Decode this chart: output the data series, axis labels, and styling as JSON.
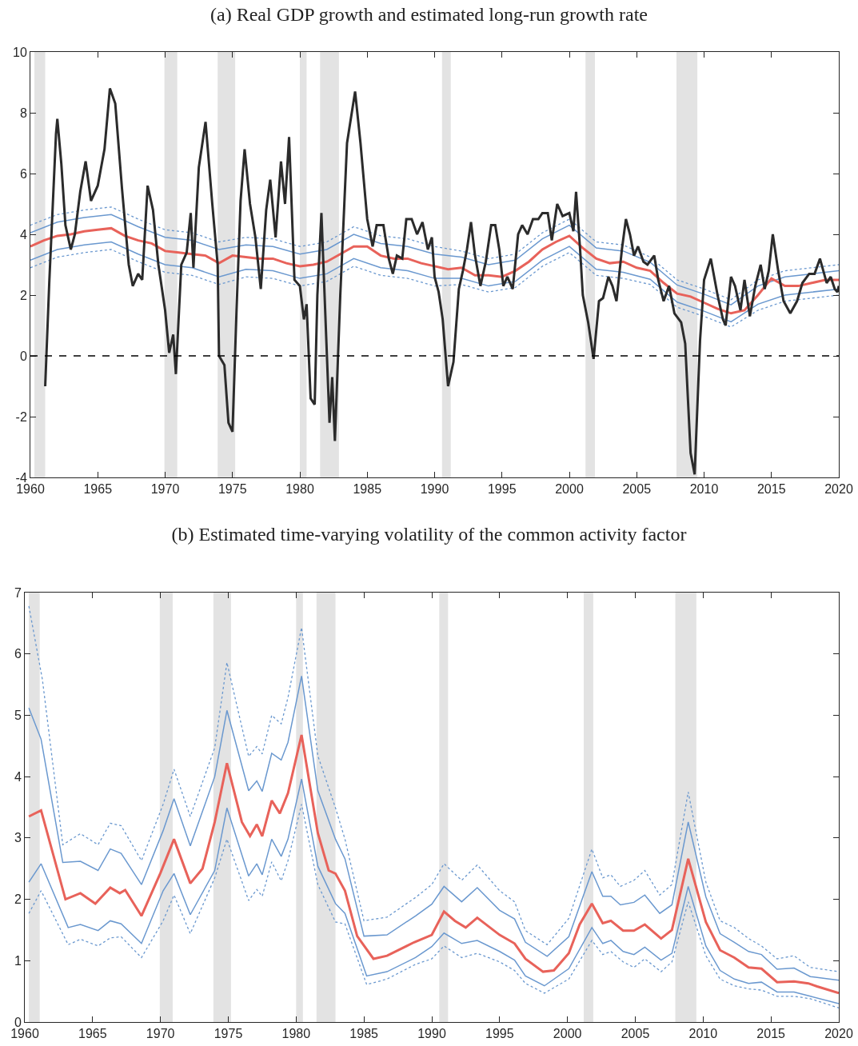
{
  "chart_data": [
    {
      "type": "line",
      "title": "(a) Real GDP growth and estimated long-run growth rate",
      "xlim": [
        1960,
        2020
      ],
      "xticks": [
        1960,
        1965,
        1970,
        1975,
        1980,
        1985,
        1990,
        1995,
        2000,
        2005,
        2010,
        2015,
        2020
      ],
      "ylim": [
        -4,
        10
      ],
      "yticks": [
        -4,
        -2,
        0,
        2,
        4,
        6,
        8,
        10
      ],
      "bands": [
        {
          "axis": "x",
          "from": 1960.3,
          "to": 1961.1,
          "color": "#e3e3e3"
        },
        {
          "axis": "x",
          "from": 1969.95,
          "to": 1970.9,
          "color": "#e3e3e3"
        },
        {
          "axis": "x",
          "from": 1973.9,
          "to": 1975.2,
          "color": "#e3e3e3"
        },
        {
          "axis": "x",
          "from": 1980.0,
          "to": 1980.5,
          "color": "#e3e3e3"
        },
        {
          "axis": "x",
          "from": 1981.5,
          "to": 1982.9,
          "color": "#e3e3e3"
        },
        {
          "axis": "x",
          "from": 1990.55,
          "to": 1991.2,
          "color": "#e3e3e3"
        },
        {
          "axis": "x",
          "from": 2001.2,
          "to": 2001.9,
          "color": "#e3e3e3"
        },
        {
          "axis": "x",
          "from": 2007.95,
          "to": 2009.5,
          "color": "#e3e3e3"
        }
      ],
      "ref_lines": [
        {
          "axis": "y",
          "value": 0,
          "color": "#000000",
          "line_style": "dashed"
        }
      ],
      "series": [
        {
          "color": "#2b2b2b",
          "x": [
            1961.1,
            1961.4,
            1961.9,
            1962.0,
            1962.3,
            1962.6,
            1963.0,
            1963.3,
            1963.7,
            1964.1,
            1964.5,
            1965.0,
            1965.5,
            1965.9,
            1966.3,
            1966.8,
            1967.3,
            1967.6,
            1968.0,
            1968.3,
            1968.7,
            1969.1,
            1969.5,
            1970.0,
            1970.3,
            1970.6,
            1970.8,
            1971.2,
            1971.6,
            1971.9,
            1972.1,
            1972.5,
            1973.0,
            1973.5,
            1973.9,
            1974.0,
            1974.4,
            1974.7,
            1975.0,
            1975.3,
            1975.6,
            1975.9,
            1976.3,
            1976.7,
            1977.1,
            1977.5,
            1977.8,
            1978.2,
            1978.6,
            1978.9,
            1979.2,
            1979.6,
            1980.0,
            1980.3,
            1980.5,
            1980.8,
            1981.1,
            1981.3,
            1981.6,
            1981.8,
            1982.2,
            1982.4,
            1982.6,
            1983.0,
            1983.5,
            1984.1,
            1984.5,
            1985.0,
            1985.4,
            1985.7,
            1986.2,
            1986.6,
            1986.9,
            1987.2,
            1987.6,
            1987.9,
            1988.3,
            1988.7,
            1989.1,
            1989.5,
            1989.8,
            1990.0,
            1990.3,
            1990.6,
            1991.0,
            1991.4,
            1991.8,
            1992.1,
            1992.4,
            1992.7,
            1993.0,
            1993.4,
            1993.8,
            1994.2,
            1994.5,
            1994.8,
            1995.1,
            1995.4,
            1995.8,
            1996.2,
            1996.5,
            1996.9,
            1997.3,
            1997.7,
            1998.0,
            1998.4,
            1998.7,
            1999.1,
            1999.5,
            2000.0,
            2000.3,
            2000.5,
            2000.8,
            2001.0,
            2001.4,
            2001.6,
            2001.8,
            2002.2,
            2002.5,
            2002.9,
            2003.2,
            2003.5,
            2003.9,
            2004.2,
            2004.5,
            2004.8,
            2005.1,
            2005.5,
            2005.8,
            2006.3,
            2006.6,
            2007.0,
            2007.4,
            2007.8,
            2008.3,
            2008.6,
            2009.0,
            2009.3,
            2009.7,
            2010.0,
            2010.5,
            2011.0,
            2011.4,
            2011.6,
            2012.0,
            2012.3,
            2012.7,
            2013.0,
            2013.4,
            2013.8,
            2014.2,
            2014.5,
            2014.8,
            2015.1,
            2015.5,
            2015.9,
            2016.4,
            2016.9,
            2017.3,
            2017.8,
            2018.2,
            2018.6,
            2019.1,
            2019.4,
            2019.7,
            2019.9,
            2020.0
          ],
          "values": [
            -1.0,
            2.4,
            7.3,
            7.8,
            6.3,
            4.3,
            3.5,
            4.0,
            5.4,
            6.4,
            5.1,
            5.6,
            6.8,
            8.8,
            8.3,
            5.5,
            3.0,
            2.3,
            2.7,
            2.5,
            5.6,
            4.8,
            3.0,
            1.5,
            0.1,
            0.7,
            -0.6,
            3.0,
            3.4,
            4.7,
            2.9,
            6.2,
            7.7,
            5.0,
            3.0,
            0.0,
            -0.3,
            -2.2,
            -2.5,
            1.5,
            5.1,
            6.8,
            5.0,
            3.9,
            2.2,
            4.8,
            5.8,
            3.9,
            6.4,
            5.0,
            7.2,
            2.5,
            2.3,
            1.2,
            1.7,
            -1.4,
            -1.6,
            2.0,
            4.7,
            2.4,
            -2.2,
            -0.7,
            -2.8,
            2.0,
            7.0,
            8.7,
            7.0,
            4.5,
            3.6,
            4.3,
            4.3,
            3.2,
            2.7,
            3.3,
            3.2,
            4.5,
            4.5,
            4.0,
            4.4,
            3.5,
            3.9,
            2.6,
            2.1,
            1.2,
            -1.0,
            -0.2,
            2.2,
            2.8,
            3.5,
            4.4,
            3.3,
            2.3,
            3.1,
            4.3,
            4.3,
            3.5,
            2.3,
            2.6,
            2.2,
            4.0,
            4.3,
            4.0,
            4.5,
            4.5,
            4.7,
            4.7,
            3.8,
            5.0,
            4.6,
            4.7,
            4.1,
            5.4,
            3.5,
            2.0,
            1.1,
            0.5,
            -0.1,
            1.8,
            1.9,
            2.6,
            2.3,
            1.8,
            3.5,
            4.5,
            4.0,
            3.3,
            3.6,
            3.1,
            3.0,
            3.3,
            2.5,
            1.8,
            2.3,
            1.4,
            1.1,
            0.4,
            -3.2,
            -3.9,
            0.5,
            2.5,
            3.2,
            2.0,
            1.2,
            1.0,
            2.6,
            2.3,
            1.5,
            2.5,
            1.3,
            2.3,
            3.0,
            2.2,
            2.8,
            4.0,
            2.8,
            1.8,
            1.4,
            1.8,
            2.4,
            2.7,
            2.7,
            3.2,
            2.4,
            2.6,
            2.2,
            2.1,
            2.3
          ]
        },
        {
          "color": "#e8625a",
          "x": [
            1960,
            1961,
            1962,
            1963,
            1964,
            1965,
            1966,
            1967,
            1968,
            1969,
            1970,
            1971,
            1972,
            1973,
            1974,
            1975,
            1976,
            1977,
            1978,
            1979,
            1980,
            1981,
            1982,
            1983,
            1984,
            1985,
            1986,
            1987,
            1988,
            1989,
            1990,
            1991,
            1992,
            1993,
            1994,
            1995,
            1996,
            1997,
            1998,
            1999,
            2000,
            2001,
            2002,
            2003,
            2004,
            2005,
            2006,
            2007,
            2008,
            2009,
            2010,
            2011,
            2012,
            2013,
            2014,
            2015,
            2016,
            2017,
            2018,
            2019,
            2020
          ],
          "values": [
            3.6,
            3.8,
            3.95,
            4.0,
            4.1,
            4.15,
            4.2,
            3.95,
            3.8,
            3.7,
            3.45,
            3.4,
            3.35,
            3.3,
            3.05,
            3.3,
            3.25,
            3.2,
            3.2,
            3.05,
            2.95,
            3.0,
            3.1,
            3.35,
            3.6,
            3.6,
            3.3,
            3.2,
            3.2,
            3.05,
            2.95,
            2.85,
            2.9,
            2.65,
            2.65,
            2.6,
            2.8,
            3.1,
            3.5,
            3.75,
            3.95,
            3.55,
            3.2,
            3.05,
            3.1,
            2.9,
            2.8,
            2.4,
            2.05,
            1.95,
            1.75,
            1.55,
            1.4,
            1.5,
            2.0,
            2.55,
            2.3,
            2.3,
            2.4,
            2.5,
            2.5
          ]
        },
        {
          "color": "#6a98cf",
          "x": [
            1960,
            1962,
            1964,
            1966,
            1968,
            1970,
            1972,
            1974,
            1976,
            1978,
            1980,
            1982,
            1984,
            1986,
            1988,
            1990,
            1992,
            1994,
            1996,
            1998,
            2000,
            2002,
            2004,
            2006,
            2008,
            2010,
            2012,
            2014,
            2016,
            2018,
            2020
          ],
          "values": [
            4.05,
            4.4,
            4.55,
            4.65,
            4.25,
            3.9,
            3.8,
            3.5,
            3.65,
            3.6,
            3.35,
            3.5,
            4.0,
            3.7,
            3.6,
            3.35,
            3.25,
            3.0,
            3.15,
            3.85,
            4.3,
            3.55,
            3.45,
            3.08,
            2.33,
            2.03,
            1.68,
            2.3,
            2.6,
            2.7,
            2.8
          ]
        },
        {
          "color": "#6a98cf",
          "x": [
            1960,
            1962,
            1964,
            1966,
            1968,
            1970,
            1972,
            1974,
            1976,
            1978,
            1980,
            1982,
            1984,
            1986,
            1988,
            1990,
            1992,
            1994,
            1996,
            1998,
            2000,
            2002,
            2004,
            2006,
            2008,
            2010,
            2012,
            2014,
            2016,
            2018,
            2020
          ],
          "values": [
            3.15,
            3.5,
            3.65,
            3.75,
            3.35,
            3.0,
            2.9,
            2.6,
            2.85,
            2.8,
            2.55,
            2.7,
            3.2,
            2.9,
            2.8,
            2.55,
            2.55,
            2.3,
            2.45,
            3.15,
            3.6,
            2.85,
            2.75,
            2.52,
            1.77,
            1.47,
            1.12,
            1.7,
            2.0,
            2.1,
            2.2
          ]
        },
        {
          "color": "#6a98cf",
          "line_style": "dotted",
          "x": [
            1960,
            1962,
            1964,
            1966,
            1968,
            1970,
            1972,
            1974,
            1976,
            1978,
            1980,
            1982,
            1984,
            1986,
            1988,
            1990,
            1992,
            1994,
            1996,
            1998,
            2000,
            2002,
            2004,
            2006,
            2008,
            2010,
            2012,
            2014,
            2016,
            2018,
            2020
          ],
          "values": [
            4.3,
            4.65,
            4.8,
            4.9,
            4.5,
            4.15,
            4.05,
            3.75,
            3.9,
            3.85,
            3.6,
            3.75,
            4.25,
            3.95,
            3.85,
            3.6,
            3.45,
            3.2,
            3.35,
            4.05,
            4.5,
            3.75,
            3.65,
            3.25,
            2.5,
            2.2,
            1.85,
            2.5,
            2.8,
            2.9,
            3.0
          ]
        },
        {
          "color": "#6a98cf",
          "line_style": "dotted",
          "x": [
            1960,
            1962,
            1964,
            1966,
            1968,
            1970,
            1972,
            1974,
            1976,
            1978,
            1980,
            1982,
            1984,
            1986,
            1988,
            1990,
            1992,
            1994,
            1996,
            1998,
            2000,
            2002,
            2004,
            2006,
            2008,
            2010,
            2012,
            2014,
            2016,
            2018,
            2020
          ],
          "values": [
            2.9,
            3.25,
            3.4,
            3.5,
            3.1,
            2.75,
            2.65,
            2.35,
            2.6,
            2.55,
            2.3,
            2.45,
            2.95,
            2.65,
            2.55,
            2.3,
            2.35,
            2.1,
            2.25,
            2.95,
            3.4,
            2.65,
            2.55,
            2.35,
            1.6,
            1.3,
            0.95,
            1.5,
            1.8,
            1.9,
            2.0
          ]
        }
      ]
    },
    {
      "type": "line",
      "title": "(b) Estimated time-varying volatility of the common activity factor",
      "xlim": [
        1960,
        2020
      ],
      "xticks": [
        1960,
        1965,
        1970,
        1975,
        1980,
        1985,
        1990,
        1995,
        2000,
        2005,
        2010,
        2015,
        2020
      ],
      "ylim": [
        0,
        7
      ],
      "yticks": [
        0,
        1,
        2,
        3,
        4,
        5,
        6,
        7
      ],
      "bands": [
        {
          "axis": "x",
          "from": 1960.3,
          "to": 1961.1,
          "color": "#e3e3e3"
        },
        {
          "axis": "x",
          "from": 1969.95,
          "to": 1970.9,
          "color": "#e3e3e3"
        },
        {
          "axis": "x",
          "from": 1973.9,
          "to": 1975.2,
          "color": "#e3e3e3"
        },
        {
          "axis": "x",
          "from": 1980.0,
          "to": 1980.5,
          "color": "#e3e3e3"
        },
        {
          "axis": "x",
          "from": 1981.5,
          "to": 1982.9,
          "color": "#e3e3e3"
        },
        {
          "axis": "x",
          "from": 1990.55,
          "to": 1991.2,
          "color": "#e3e3e3"
        },
        {
          "axis": "x",
          "from": 2001.2,
          "to": 2001.9,
          "color": "#e3e3e3"
        },
        {
          "axis": "x",
          "from": 2007.95,
          "to": 2009.5,
          "color": "#e3e3e3"
        }
      ],
      "series": [
        {
          "color": "#e8625a",
          "x": [
            1960.3,
            1961.2,
            1963.0,
            1964.1,
            1965.2,
            1966.3,
            1967.0,
            1967.4,
            1968.6,
            1970.0,
            1971.0,
            1972.2,
            1973.1,
            1974.0,
            1974.9,
            1976.0,
            1976.6,
            1977.1,
            1977.5,
            1978.2,
            1978.8,
            1979.4,
            1980.4,
            1981.6,
            1982.4,
            1982.9,
            1983.6,
            1984.5,
            1985.7,
            1986.7,
            1988.7,
            1990.0,
            1990.9,
            1991.7,
            1992.5,
            1993.35,
            1995.0,
            1996.1,
            1996.9,
            1998.2,
            1999.0,
            2000.1,
            2000.9,
            2001.8,
            2002.6,
            2003.2,
            2004.1,
            2004.9,
            2005.7,
            2006.9,
            2007.7,
            2008.9,
            2010.2,
            2011.25,
            2012.3,
            2013.35,
            2014.3,
            2015.45,
            2016.7,
            2017.75,
            2018.4,
            2020
          ],
          "values": [
            3.35,
            3.45,
            2.0,
            2.1,
            1.93,
            2.19,
            2.1,
            2.15,
            1.73,
            2.43,
            2.98,
            2.26,
            2.5,
            3.26,
            4.22,
            3.26,
            3.03,
            3.22,
            3.03,
            3.61,
            3.4,
            3.73,
            4.68,
            3.08,
            2.47,
            2.42,
            2.14,
            1.4,
            1.03,
            1.08,
            1.3,
            1.42,
            1.8,
            1.65,
            1.54,
            1.7,
            1.42,
            1.28,
            1.03,
            0.82,
            0.84,
            1.12,
            1.59,
            1.93,
            1.61,
            1.65,
            1.49,
            1.49,
            1.59,
            1.36,
            1.5,
            2.66,
            1.63,
            1.17,
            1.05,
            0.89,
            0.87,
            0.65,
            0.66,
            0.63,
            0.58,
            0.47
          ]
        },
        {
          "color": "#6a98cf",
          "x": [
            1960.3,
            1961.2,
            1962.8,
            1964.1,
            1965.4,
            1966.3,
            1967.1,
            1968.6,
            1970.2,
            1971.0,
            1972.2,
            1974.0,
            1974.9,
            1976.5,
            1977.1,
            1977.5,
            1978.2,
            1978.9,
            1979.4,
            1980.4,
            1981.6,
            1982.9,
            1983.6,
            1985.0,
            1986.7,
            1988.8,
            1990.0,
            1990.9,
            1992.2,
            1993.35,
            1995.0,
            1996.1,
            1996.9,
            1998.5,
            2000.1,
            2001.8,
            2002.6,
            2003.2,
            2003.9,
            2004.9,
            2005.7,
            2006.8,
            2007.7,
            2008.9,
            2010.2,
            2011.25,
            2012.3,
            2013.35,
            2014.3,
            2015.45,
            2016.7,
            2017.9,
            2020
          ],
          "values": [
            5.12,
            4.61,
            2.6,
            2.62,
            2.47,
            2.82,
            2.75,
            2.24,
            3.12,
            3.64,
            2.87,
            4.0,
            5.08,
            3.77,
            3.93,
            3.76,
            4.38,
            4.27,
            4.56,
            5.64,
            3.77,
            2.98,
            2.66,
            1.4,
            1.42,
            1.73,
            1.92,
            2.21,
            1.96,
            2.19,
            1.82,
            1.68,
            1.3,
            1.07,
            1.39,
            2.45,
            2.05,
            2.05,
            1.91,
            1.95,
            2.07,
            1.77,
            1.91,
            3.26,
            2.04,
            1.44,
            1.3,
            1.15,
            1.1,
            0.86,
            0.88,
            0.74,
            0.68
          ]
        },
        {
          "color": "#6a98cf",
          "x": [
            1960.3,
            1961.2,
            1963.2,
            1964.1,
            1965.4,
            1966.3,
            1967.1,
            1968.6,
            1970.2,
            1971.0,
            1972.2,
            1974.0,
            1974.9,
            1976.5,
            1977.1,
            1977.5,
            1978.2,
            1978.9,
            1979.4,
            1980.4,
            1981.6,
            1982.9,
            1983.6,
            1985.2,
            1986.7,
            1988.8,
            1990.0,
            1990.9,
            1992.2,
            1993.35,
            1995.0,
            1996.1,
            1996.9,
            1998.3,
            2000.1,
            2001.8,
            2002.6,
            2003.2,
            2004.1,
            2004.9,
            2005.7,
            2006.9,
            2007.7,
            2008.9,
            2010.2,
            2011.25,
            2012.3,
            2013.35,
            2014.3,
            2015.45,
            2016.7,
            2017.9,
            2020
          ],
          "values": [
            2.28,
            2.58,
            1.54,
            1.59,
            1.49,
            1.65,
            1.6,
            1.28,
            2.14,
            2.42,
            1.75,
            2.47,
            3.49,
            2.38,
            2.58,
            2.4,
            2.98,
            2.7,
            2.98,
            3.96,
            2.54,
            1.93,
            1.77,
            0.75,
            0.82,
            1.05,
            1.23,
            1.45,
            1.28,
            1.33,
            1.15,
            1.01,
            0.75,
            0.59,
            0.87,
            1.54,
            1.28,
            1.33,
            1.15,
            1.1,
            1.22,
            1.01,
            1.12,
            2.21,
            1.24,
            0.84,
            0.7,
            0.63,
            0.65,
            0.49,
            0.49,
            0.42,
            0.3
          ]
        },
        {
          "color": "#6a98cf",
          "line_style": "dotted",
          "x": [
            1960.3,
            1961.3,
            1962.8,
            1964.1,
            1965.4,
            1966.3,
            1967.1,
            1968.6,
            1970.2,
            1971.0,
            1972.2,
            1974.0,
            1974.9,
            1976.5,
            1977.1,
            1977.5,
            1978.2,
            1978.9,
            1979.4,
            1980.4,
            1981.6,
            1982.9,
            1983.6,
            1985.0,
            1986.7,
            1988.8,
            1990.0,
            1990.9,
            1992.2,
            1993.35,
            1995.0,
            1996.1,
            1996.9,
            1998.5,
            2000.1,
            2001.8,
            2002.6,
            2003.2,
            2003.9,
            2004.9,
            2005.7,
            2006.8,
            2007.7,
            2008.9,
            2010.2,
            2011.25,
            2012.3,
            2013.35,
            2014.3,
            2015.45,
            2016.7,
            2017.9,
            2020
          ],
          "values": [
            6.78,
            5.58,
            2.89,
            3.07,
            2.89,
            3.24,
            3.2,
            2.63,
            3.55,
            4.12,
            3.35,
            4.47,
            5.86,
            4.33,
            4.49,
            4.37,
            5.0,
            4.86,
            5.29,
            6.43,
            4.34,
            3.49,
            2.98,
            1.65,
            1.71,
            2.03,
            2.24,
            2.58,
            2.31,
            2.56,
            2.14,
            1.96,
            1.49,
            1.26,
            1.69,
            2.82,
            2.35,
            2.4,
            2.21,
            2.31,
            2.47,
            2.07,
            2.24,
            3.75,
            2.28,
            1.65,
            1.54,
            1.36,
            1.24,
            1.03,
            1.08,
            0.89,
            0.82
          ]
        },
        {
          "color": "#6a98cf",
          "line_style": "dotted",
          "x": [
            1960.3,
            1961.2,
            1963.2,
            1964.1,
            1965.4,
            1966.3,
            1967.1,
            1968.6,
            1970.2,
            1971.0,
            1972.2,
            1974.0,
            1974.9,
            1976.5,
            1977.1,
            1977.5,
            1978.2,
            1978.9,
            1979.4,
            1980.4,
            1981.6,
            1982.9,
            1983.6,
            1985.2,
            1986.7,
            1988.8,
            1990.0,
            1990.9,
            1992.2,
            1993.35,
            1995.0,
            1996.1,
            1996.9,
            1998.3,
            2000.1,
            2001.8,
            2002.6,
            2003.2,
            2004.1,
            2004.9,
            2005.7,
            2006.9,
            2007.7,
            2008.9,
            2010.2,
            2011.25,
            2012.3,
            2013.35,
            2014.3,
            2015.45,
            2016.7,
            2017.9,
            2020
          ],
          "values": [
            1.77,
            2.14,
            1.26,
            1.35,
            1.24,
            1.37,
            1.39,
            1.05,
            1.65,
            2.07,
            1.44,
            2.35,
            2.98,
            1.98,
            2.16,
            2.05,
            2.61,
            2.3,
            2.63,
            3.55,
            2.24,
            1.63,
            1.6,
            0.61,
            0.7,
            0.94,
            1.03,
            1.24,
            1.05,
            1.12,
            0.98,
            0.84,
            0.63,
            0.47,
            0.7,
            1.33,
            1.1,
            1.15,
            0.98,
            0.89,
            1.03,
            0.82,
            0.98,
            1.96,
            1.08,
            0.7,
            0.59,
            0.54,
            0.52,
            0.42,
            0.42,
            0.38,
            0.23
          ]
        }
      ]
    }
  ]
}
